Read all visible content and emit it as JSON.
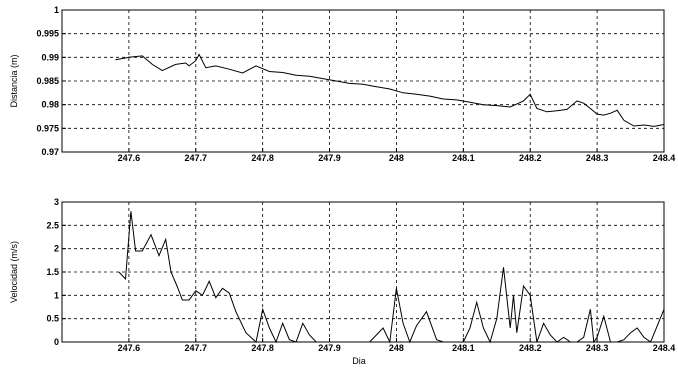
{
  "chart_data": [
    {
      "type": "line",
      "ylabel": "Distancia (m)",
      "xlabel": "",
      "xlim": [
        247.5,
        248.4
      ],
      "ylim": [
        0.97,
        1.0
      ],
      "grid": true,
      "xticks": [
        247.6,
        247.7,
        247.8,
        247.9,
        248.0,
        248.1,
        248.2,
        248.3,
        248.4
      ],
      "xtick_labels": [
        "247.6",
        "247.7",
        "247.8",
        "247.9",
        "248",
        "248.1",
        "248.2",
        "248.3",
        "248.4"
      ],
      "yticks": [
        0.97,
        0.975,
        0.98,
        0.985,
        0.99,
        0.995,
        1.0
      ],
      "ytick_labels": [
        "0.97",
        "0.975",
        "0.98",
        "0.985",
        "0.99",
        "0.995",
        "1"
      ],
      "series": [
        {
          "x": [
            247.58,
            247.6,
            247.62,
            247.635,
            247.65,
            247.67,
            247.685,
            247.69,
            247.7,
            247.705,
            247.715,
            247.73,
            247.75,
            247.77,
            247.79,
            247.81,
            247.83,
            247.85,
            247.87,
            247.89,
            247.91,
            247.93,
            247.95,
            247.97,
            247.99,
            248.01,
            248.03,
            248.05,
            248.07,
            248.09,
            248.11,
            248.13,
            248.15,
            248.17,
            248.19,
            248.2,
            248.21,
            248.225,
            248.24,
            248.255,
            248.27,
            248.28,
            248.29,
            248.3,
            248.31,
            248.32,
            248.33,
            248.34,
            248.355,
            248.37,
            248.385,
            248.4
          ],
          "y": [
            0.9895,
            0.99,
            0.9903,
            0.9885,
            0.9872,
            0.9885,
            0.9888,
            0.9882,
            0.9893,
            0.9906,
            0.9878,
            0.9882,
            0.9875,
            0.9867,
            0.9882,
            0.987,
            0.9868,
            0.9862,
            0.986,
            0.9855,
            0.985,
            0.9845,
            0.9843,
            0.9838,
            0.9833,
            0.9825,
            0.9822,
            0.9818,
            0.9812,
            0.981,
            0.9805,
            0.98,
            0.9798,
            0.9795,
            0.9808,
            0.9822,
            0.9792,
            0.9785,
            0.9787,
            0.979,
            0.9808,
            0.9803,
            0.9792,
            0.978,
            0.9778,
            0.9782,
            0.9788,
            0.9767,
            0.9755,
            0.9757,
            0.9754,
            0.9758
          ]
        }
      ]
    },
    {
      "type": "line",
      "ylabel": "Velocidad (m/s)",
      "xlabel": "Dia",
      "xlim": [
        247.5,
        248.4
      ],
      "ylim": [
        0,
        3
      ],
      "grid": true,
      "xticks": [
        247.6,
        247.7,
        247.8,
        247.9,
        248.0,
        248.1,
        248.2,
        248.3,
        248.4
      ],
      "xtick_labels": [
        "247.6",
        "247.7",
        "247.8",
        "247.9",
        "248",
        "248.1",
        "248.2",
        "248.3",
        "248.4"
      ],
      "yticks": [
        0,
        0.5,
        1,
        1.5,
        2,
        2.5,
        3
      ],
      "ytick_labels": [
        "0",
        "0.5",
        "1",
        "1.5",
        "2",
        "2.5",
        "3"
      ],
      "series": [
        {
          "x": [
            247.585,
            247.595,
            247.603,
            247.61,
            247.62,
            247.633,
            247.645,
            247.655,
            247.663,
            247.672,
            247.68,
            247.69,
            247.7,
            247.71,
            247.72,
            247.73,
            247.74,
            247.75,
            247.76,
            247.775,
            247.79,
            247.8,
            247.81,
            247.82,
            247.83,
            247.84,
            247.85,
            247.86,
            247.87,
            247.88,
            247.89,
            247.9,
            247.92,
            247.94,
            247.96,
            247.98,
            247.99,
            248.0,
            248.01,
            248.02,
            248.03,
            248.045,
            248.06,
            248.07,
            248.08,
            248.09,
            248.1,
            248.11,
            248.12,
            248.13,
            248.14,
            248.15,
            248.16,
            248.17,
            248.175,
            248.18,
            248.19,
            248.2,
            248.21,
            248.22,
            248.23,
            248.24,
            248.25,
            248.26,
            248.27,
            248.28,
            248.29,
            248.295,
            248.3,
            248.31,
            248.32,
            248.33,
            248.34,
            248.35,
            248.36,
            248.37,
            248.38,
            248.39,
            248.4
          ],
          "y": [
            1.5,
            1.35,
            2.8,
            1.95,
            1.95,
            2.3,
            1.85,
            2.2,
            1.5,
            1.2,
            0.9,
            0.9,
            1.1,
            1.0,
            1.3,
            0.95,
            1.15,
            1.05,
            0.65,
            0.2,
            0.0,
            0.7,
            0.3,
            0.0,
            0.4,
            0.05,
            0.0,
            0.4,
            0.15,
            0.0,
            0.0,
            0.0,
            0.0,
            0.0,
            0.0,
            0.3,
            0.0,
            1.15,
            0.4,
            0.0,
            0.35,
            0.65,
            0.05,
            0.0,
            0.0,
            0.0,
            0.0,
            0.3,
            0.85,
            0.3,
            0.0,
            0.5,
            1.6,
            0.3,
            1.0,
            0.2,
            1.2,
            1.0,
            0.0,
            0.4,
            0.15,
            0.0,
            0.1,
            0.0,
            0.0,
            0.1,
            0.7,
            0.0,
            0.1,
            0.55,
            0.0,
            0.0,
            0.05,
            0.2,
            0.3,
            0.1,
            0.0,
            0.35,
            0.7
          ]
        }
      ]
    }
  ]
}
